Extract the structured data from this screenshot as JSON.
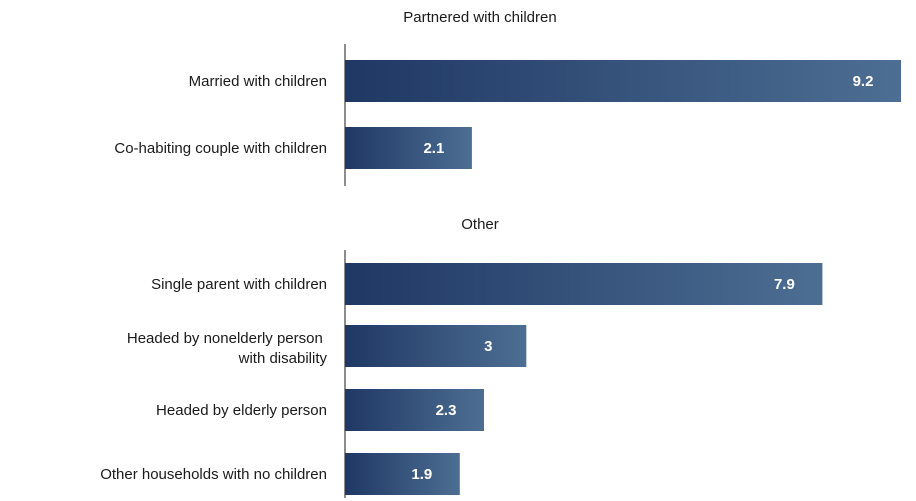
{
  "chart_data": {
    "type": "bar",
    "orientation": "horizontal",
    "title": "",
    "xlabel": "",
    "ylabel": "",
    "xlim": [
      0,
      9.2
    ],
    "grid": false,
    "legend": "none",
    "colors": {
      "bar_start": "#1f3864",
      "bar_end": "#4d6e93",
      "axis": "#666666",
      "value_text": "#ffffff"
    },
    "groups": [
      {
        "title": "Partnered with children",
        "bars": [
          {
            "label": "Married with children",
            "value": 9.2,
            "value_label": "9.2"
          },
          {
            "label": "Co-habiting couple with children",
            "value": 2.1,
            "value_label": "2.1"
          }
        ]
      },
      {
        "title": "Other",
        "bars": [
          {
            "label": "Single parent with children",
            "value": 7.9,
            "value_label": "7.9"
          },
          {
            "label": "Headed by nonelderly person with disability",
            "label_lines": [
              "Headed by nonelderly person",
              "with disability"
            ],
            "value": 3,
            "value_label": "3"
          },
          {
            "label": "Headed by elderly person",
            "value": 2.3,
            "value_label": "2.3"
          },
          {
            "label": "Other households with no children",
            "value": 1.9,
            "value_label": "1.9"
          }
        ]
      }
    ]
  }
}
